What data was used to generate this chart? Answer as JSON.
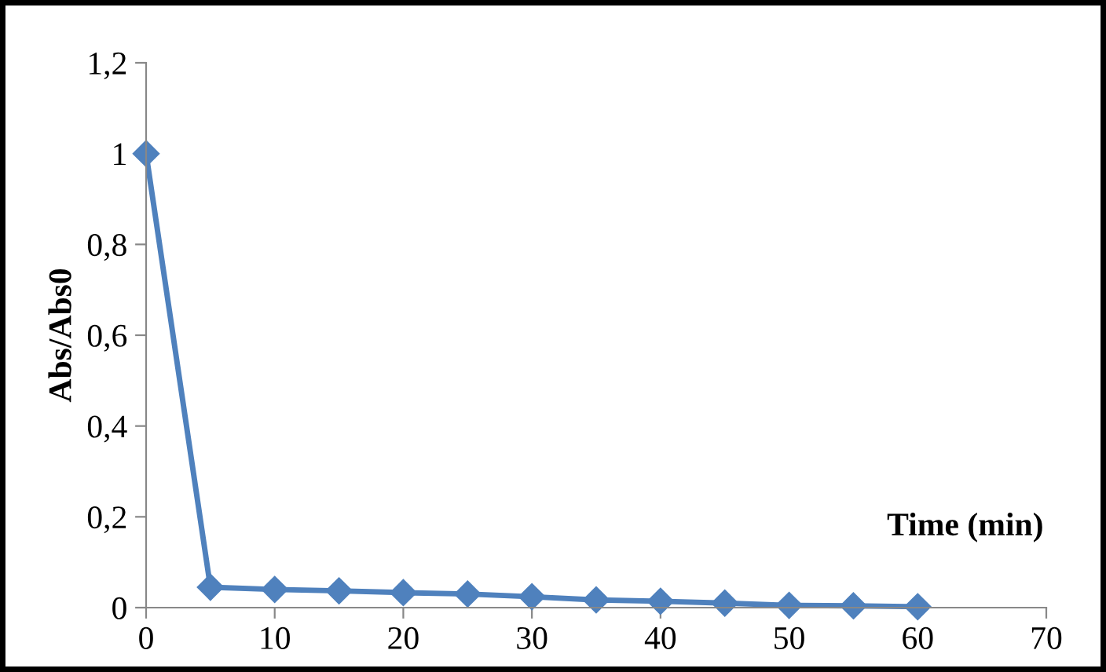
{
  "chart_data": {
    "type": "line",
    "xlabel": "Time (min)",
    "ylabel": "Abs/Abs0",
    "x": [
      0,
      5,
      10,
      15,
      20,
      25,
      30,
      35,
      40,
      45,
      50,
      55,
      60
    ],
    "series": [
      {
        "color": "#4f81bd",
        "values": [
          1,
          0.045,
          0.04,
          0.037,
          0.033,
          0.03,
          0.024,
          0.017,
          0.014,
          0.01,
          0.005,
          0.004,
          0.002
        ]
      }
    ],
    "xlim": [
      0,
      70
    ],
    "xticks": [
      0,
      10,
      20,
      30,
      40,
      50,
      60,
      70
    ],
    "ylim": [
      0,
      1.2
    ],
    "yticks": [
      0,
      {
        "value": 0.2,
        "label": "0,2"
      },
      {
        "value": 0.4,
        "label": "0,4"
      },
      {
        "value": 0.6,
        "label": "0,6"
      },
      {
        "value": 0.8,
        "label": "0,8"
      },
      1,
      {
        "value": 1.2,
        "label": "1,2"
      }
    ],
    "grid": false,
    "legend": false,
    "marker": "diamond",
    "line_style": "solid"
  }
}
